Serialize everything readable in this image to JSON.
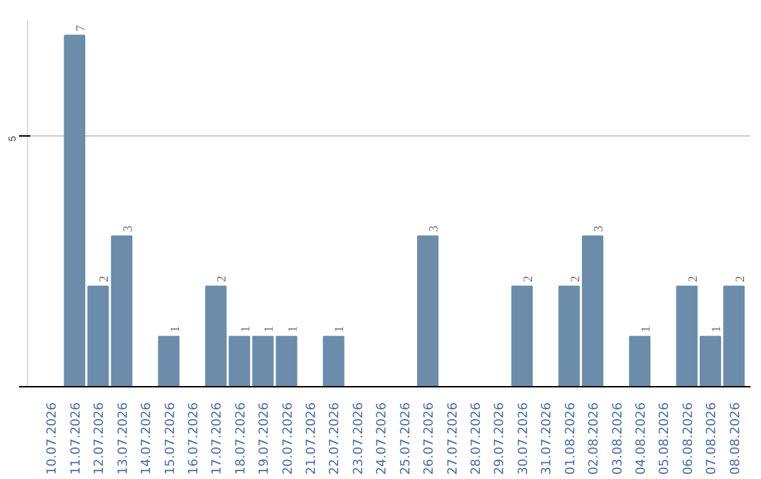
{
  "chart_data": {
    "type": "bar",
    "categories": [
      "10.07.2026",
      "11.07.2026",
      "12.07.2026",
      "13.07.2026",
      "14.07.2026",
      "15.07.2026",
      "16.07.2026",
      "17.07.2026",
      "18.07.2026",
      "19.07.2026",
      "20.07.2026",
      "21.07.2026",
      "22.07.2026",
      "23.07.2026",
      "24.07.2026",
      "25.07.2026",
      "26.07.2026",
      "27.07.2026",
      "28.07.2026",
      "29.07.2026",
      "30.07.2026",
      "31.07.2026",
      "01.08.2026",
      "02.08.2026",
      "03.08.2026",
      "04.08.2026",
      "05.08.2026",
      "06.08.2026",
      "07.08.2026",
      "08.08.2026"
    ],
    "values": [
      null,
      7,
      2,
      3,
      null,
      1,
      null,
      2,
      1,
      1,
      1,
      null,
      1,
      null,
      null,
      null,
      3,
      null,
      null,
      null,
      2,
      null,
      2,
      3,
      null,
      1,
      null,
      2,
      1,
      2
    ],
    "color": "#6b8cab",
    "ylim": [
      0,
      7.3
    ],
    "yticks": [
      {
        "value": 0,
        "label": null
      },
      5
    ],
    "grid": "y",
    "data_labels": true
  }
}
